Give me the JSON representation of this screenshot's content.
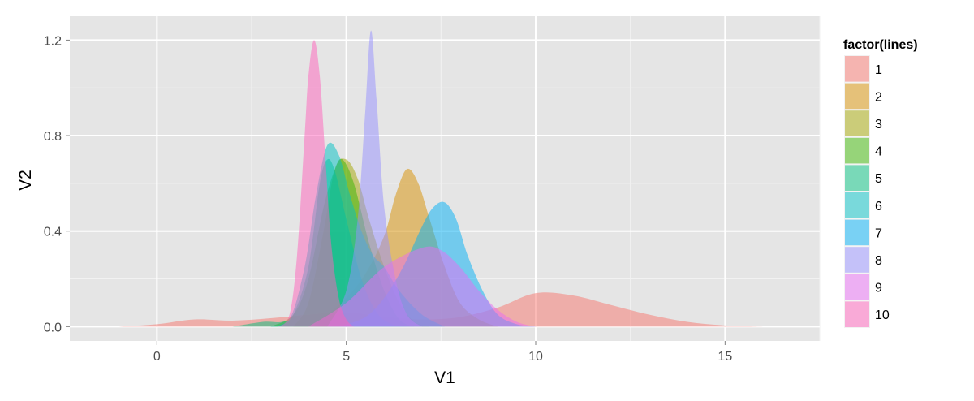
{
  "chart_data": {
    "type": "area",
    "title": "",
    "xlabel": "V1",
    "ylabel": "V2",
    "xlim": [
      -2.3,
      17.5
    ],
    "ylim": [
      -0.06,
      1.3
    ],
    "x_ticks": [
      0,
      5,
      10,
      15
    ],
    "y_ticks": [
      0.0,
      0.4,
      0.8,
      1.2
    ],
    "y_tick_labels": [
      "0.0",
      "0.4",
      "0.8",
      "1.2"
    ],
    "grid": true,
    "fill_opacity": 0.5,
    "legend": {
      "title": "factor(lines)",
      "placement": "right"
    },
    "series": [
      {
        "name": "1",
        "color": "#F8766D",
        "x": [
          -1.0,
          0,
          1,
          2,
          3,
          4,
          5,
          6,
          7,
          8,
          9,
          10,
          11,
          12,
          13,
          14,
          15,
          16,
          16.3
        ],
        "y": [
          0.0,
          0.01,
          0.03,
          0.025,
          0.035,
          0.05,
          0.06,
          0.04,
          0.03,
          0.04,
          0.08,
          0.14,
          0.13,
          0.09,
          0.05,
          0.02,
          0.005,
          0.0,
          0.0
        ]
      },
      {
        "name": "2",
        "color": "#D89000",
        "x": [
          4.0,
          4.5,
          5.0,
          5.5,
          6.0,
          6.3,
          6.6,
          6.9,
          7.2,
          7.6,
          8.0,
          8.5,
          9.0
        ],
        "y": [
          0.0,
          0.05,
          0.12,
          0.22,
          0.38,
          0.55,
          0.66,
          0.6,
          0.45,
          0.25,
          0.1,
          0.03,
          0.0
        ]
      },
      {
        "name": "3",
        "color": "#A3A500",
        "x": [
          3.6,
          4.0,
          4.4,
          4.7,
          5.0,
          5.3,
          5.6,
          6.0,
          6.4,
          6.8,
          7.2
        ],
        "y": [
          0.0,
          0.1,
          0.4,
          0.66,
          0.7,
          0.62,
          0.45,
          0.25,
          0.1,
          0.02,
          0.0
        ]
      },
      {
        "name": "4",
        "color": "#39B600",
        "x": [
          3.0,
          3.6,
          4.0,
          4.4,
          4.7,
          4.9,
          5.2,
          5.6,
          6.0,
          6.4,
          6.8
        ],
        "y": [
          0.0,
          0.05,
          0.2,
          0.5,
          0.66,
          0.7,
          0.6,
          0.35,
          0.15,
          0.03,
          0.0
        ]
      },
      {
        "name": "5",
        "color": "#00BF7D",
        "x": [
          2.0,
          2.8,
          3.3,
          3.6,
          4.0,
          4.3,
          4.5,
          4.7,
          5.0,
          5.4,
          5.8,
          6.2,
          6.6
        ],
        "y": [
          0.0,
          0.02,
          0.02,
          0.05,
          0.25,
          0.6,
          0.7,
          0.65,
          0.45,
          0.2,
          0.06,
          0.01,
          0.0
        ]
      },
      {
        "name": "6",
        "color": "#00BFC4",
        "x": [
          3.0,
          3.5,
          3.9,
          4.2,
          4.5,
          4.8,
          5.1,
          5.4,
          5.7,
          6.0,
          6.4,
          7.0,
          7.6
        ],
        "y": [
          0.0,
          0.03,
          0.25,
          0.55,
          0.76,
          0.72,
          0.55,
          0.4,
          0.3,
          0.25,
          0.15,
          0.05,
          0.0
        ]
      },
      {
        "name": "7",
        "color": "#00B0F6",
        "x": [
          4.8,
          5.5,
          6.0,
          6.5,
          7.0,
          7.3,
          7.6,
          7.9,
          8.2,
          8.6,
          9.0,
          9.5,
          10.0
        ],
        "y": [
          0.0,
          0.04,
          0.12,
          0.25,
          0.42,
          0.5,
          0.52,
          0.45,
          0.3,
          0.15,
          0.05,
          0.01,
          0.0
        ]
      },
      {
        "name": "8",
        "color": "#9590FF",
        "x": [
          4.5,
          5.0,
          5.3,
          5.5,
          5.65,
          5.8,
          6.0,
          6.3,
          6.6,
          7.0
        ],
        "y": [
          0.0,
          0.15,
          0.45,
          0.9,
          1.24,
          0.95,
          0.5,
          0.2,
          0.05,
          0.0
        ]
      },
      {
        "name": "9",
        "color": "#E76BF3",
        "x": [
          4.0,
          5.0,
          6.0,
          7.0,
          7.5,
          8.0,
          8.5,
          9.0,
          9.5,
          10.0
        ],
        "y": [
          0.0,
          0.1,
          0.25,
          0.33,
          0.32,
          0.25,
          0.15,
          0.07,
          0.02,
          0.0
        ]
      },
      {
        "name": "10",
        "color": "#FF62BC",
        "x": [
          3.2,
          3.5,
          3.7,
          3.9,
          4.0,
          4.15,
          4.3,
          4.45,
          4.6,
          4.8,
          5.0,
          5.2
        ],
        "y": [
          0.0,
          0.05,
          0.3,
          0.8,
          1.05,
          1.2,
          1.05,
          0.7,
          0.35,
          0.12,
          0.03,
          0.0
        ]
      }
    ]
  }
}
